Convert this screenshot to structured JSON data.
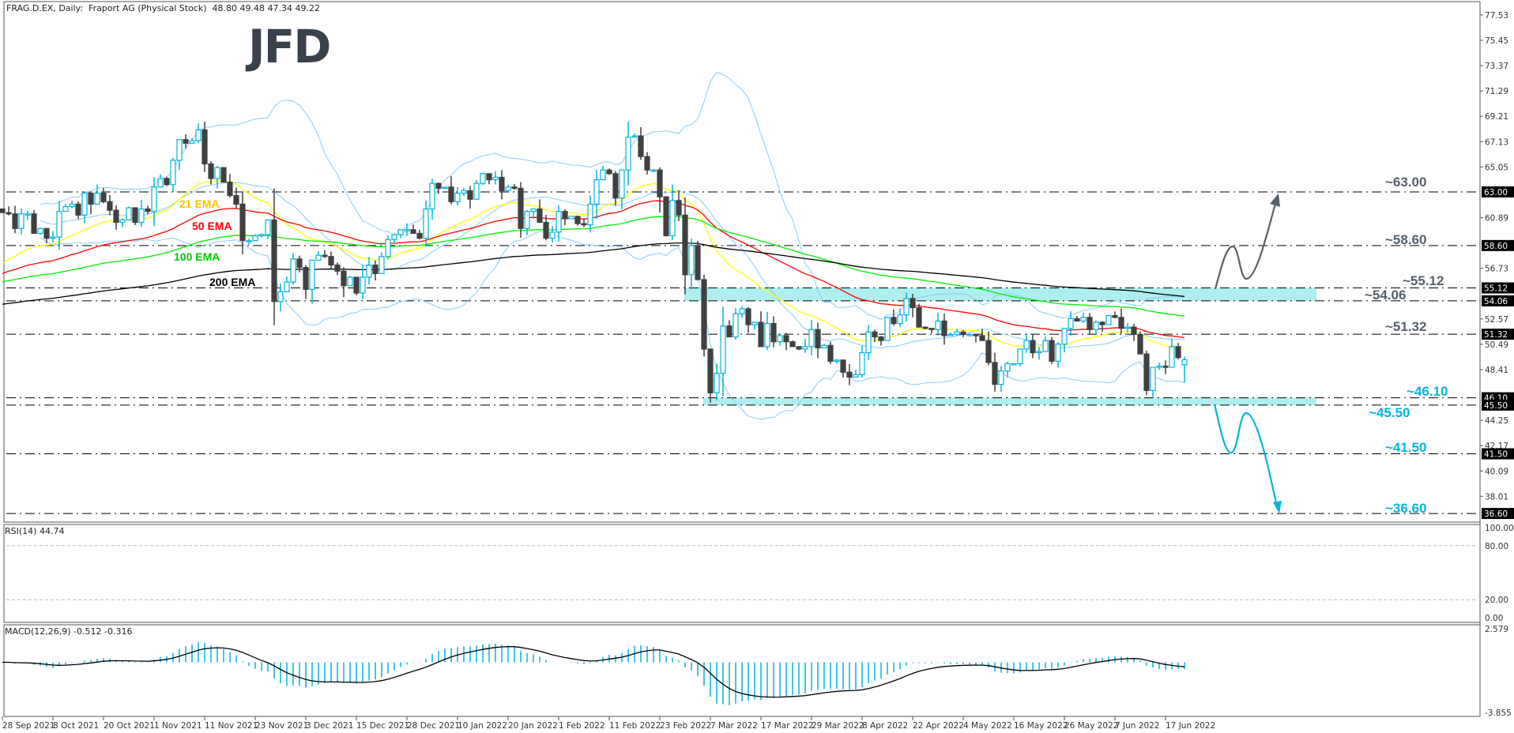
{
  "header": {
    "title": "FRAG.D.EX, Daily:  Fraport AG (Physical Stock)  48.80 49.48 47.34 49.22"
  },
  "logo": "JFD",
  "colors": {
    "bull_candle": "#00b4e0",
    "bear_candle": "#404040",
    "ema21": "#ffff00",
    "ema21_label": "#ffc000",
    "ema50": "#ff0000",
    "ema100": "#00ee00",
    "ema200": "#000000",
    "bollinger": "#87cefa",
    "zone": "#aeeeee",
    "resistance_text": "#56606b",
    "support_text": "#00b4e0",
    "rsi_line": "#00b4e0",
    "macd_hist": "#00b4e0",
    "macd_signal": "#000000"
  },
  "chart_data": [
    {
      "type": "candlestick",
      "symbol": "FRAG.D.EX",
      "timeframe": "Daily",
      "name": "Fraport AG (Physical Stock)",
      "last_ohlc": [
        48.8,
        49.48,
        47.34,
        49.22
      ],
      "x_labels": [
        "28 Sep 2021",
        "8 Oct 2021",
        "20 Oct 2021",
        "1 Nov 2021",
        "11 Nov 2021",
        "23 Nov 2021",
        "3 Dec 2021",
        "15 Dec 2021",
        "28 Dec 2021",
        "10 Jan 2022",
        "20 Jan 2022",
        "1 Feb 2022",
        "11 Feb 2022",
        "23 Feb 2022",
        "7 Mar 2022",
        "17 Mar 2022",
        "29 Mar 2022",
        "8 Apr 2022",
        "22 Apr 2022",
        "4 May 2022",
        "16 May 2022",
        "26 May 2022",
        "7 Jun 2022",
        "17 Jun 2022"
      ],
      "close": [
        61.3,
        61.2,
        60.0,
        61.2,
        61.2,
        59.6,
        60.0,
        59.2,
        59.3,
        61.4,
        61.8,
        62.0,
        61.1,
        62.9,
        62.0,
        62.9,
        62.2,
        61.5,
        60.5,
        60.7,
        61.7,
        60.5,
        61.6,
        61.4,
        63.4,
        64.1,
        63.6,
        65.6,
        67.3,
        67.0,
        67.2,
        68.1,
        65.3,
        64.1,
        65.0,
        63.8,
        62.7,
        62.0,
        59.0,
        59.0,
        59.4,
        59.5,
        60.7,
        54.0,
        54.8,
        55.6,
        57.5,
        56.8,
        55.0,
        57.4,
        57.8,
        57.7,
        57.0,
        56.5,
        55.3,
        56.0,
        54.7,
        56.0,
        57.0,
        56.3,
        57.7,
        59.1,
        59.5,
        59.9,
        59.9,
        59.6,
        59.2,
        61.6,
        63.7,
        63.3,
        63.4,
        62.2,
        62.9,
        63.1,
        62.4,
        63.7,
        64.5,
        64.0,
        64.2,
        63.1,
        63.4,
        63.3,
        60.0,
        61.4,
        61.6,
        60.5,
        59.2,
        59.7,
        61.4,
        60.8,
        61.0,
        60.4,
        60.3,
        62.0,
        64.0,
        64.8,
        64.5,
        62.5,
        64.8,
        67.5,
        67.6,
        65.9,
        64.8,
        64.8,
        62.6,
        59.4,
        62.3,
        61.1,
        56.2,
        58.6,
        55.8,
        50.1,
        46.5,
        48.1,
        52.0,
        51.1,
        53.0,
        53.4,
        52.1,
        52.3,
        50.3,
        52.2,
        50.7,
        51.2,
        50.7,
        50.3,
        50.1,
        50.3,
        51.7,
        50.2,
        50.4,
        49.1,
        49.2,
        48.2,
        47.8,
        48.0,
        49.8,
        51.5,
        51.1,
        50.8,
        52.7,
        52.2,
        52.9,
        54.25,
        53.5,
        51.9,
        51.8,
        51.7,
        52.4,
        51.2,
        51.3,
        51.5,
        51.3,
        51.3,
        51.2,
        50.8,
        49.0,
        47.2,
        48.3,
        48.9,
        48.9,
        50.1,
        50.8,
        49.8,
        49.9,
        50.8,
        49.1,
        50.5,
        51.8,
        52.6,
        52.4,
        52.7,
        51.7,
        52.3,
        52.1,
        52.85,
        52.7,
        51.8,
        51.9,
        51.3,
        49.7,
        46.7,
        48.6,
        48.7,
        48.6,
        50.3,
        49.4,
        49.22
      ],
      "moving_averages": [
        {
          "label": "21 EMA",
          "period": 21,
          "start_value": 56.7
        },
        {
          "label": "50 EMA",
          "period": 50,
          "start_value": 56.1
        },
        {
          "label": "100 EMA",
          "period": 100,
          "start_value": 55.5
        },
        {
          "label": "200 EMA",
          "period": 200,
          "start_value": 53.7
        }
      ],
      "bollinger": {
        "period": 20,
        "deviations": 2
      },
      "y_ticks": [
        77.53,
        75.45,
        73.37,
        71.29,
        69.21,
        67.13,
        65.05,
        60.89,
        56.73,
        52.57,
        50.49,
        48.41,
        44.25,
        42.17,
        40.09,
        38.01
      ],
      "levels": [
        {
          "value": 63.0,
          "axis_label": "63.00",
          "label": "~63.00",
          "kind": "resistance"
        },
        {
          "value": 58.6,
          "axis_label": "58.60",
          "label": "~58.60",
          "kind": "resistance"
        },
        {
          "value": 55.12,
          "axis_label": "55.12",
          "label": "~55.12",
          "kind": "resistance"
        },
        {
          "value": 54.06,
          "axis_label": "54.06",
          "label": "~54.06",
          "kind": "resistance"
        },
        {
          "value": 51.32,
          "axis_label": "51.32",
          "label": "~51.32",
          "kind": "resistance"
        },
        {
          "value": 46.1,
          "axis_label": "46.10",
          "label": "~46.10",
          "kind": "support"
        },
        {
          "value": 45.5,
          "axis_label": "45.50",
          "label": "~45.50",
          "kind": "support"
        },
        {
          "value": 41.5,
          "axis_label": "41.50",
          "label": "~41.50",
          "kind": "support"
        },
        {
          "value": 36.6,
          "axis_label": "36.60",
          "label": "~36.60",
          "kind": "support"
        }
      ],
      "zones": [
        {
          "from": 54.06,
          "to": 55.12
        },
        {
          "from": 45.5,
          "to": 46.1
        }
      ],
      "scenarios": [
        {
          "direction": "up",
          "target": 63.0
        },
        {
          "direction": "down",
          "target": 36.6
        }
      ],
      "ylim": [
        36.0,
        78.5
      ]
    },
    {
      "type": "line",
      "title": "RSI(14) 44.74",
      "period": 14,
      "ylim": [
        0,
        100
      ],
      "y_ticks": [
        "100.00",
        "80.00",
        "20.00",
        "0.00"
      ],
      "guide_levels": [
        80,
        20
      ]
    },
    {
      "type": "bar",
      "title": "MACD(12,26,9) -0.512 -0.316",
      "params": [
        12,
        26,
        9
      ],
      "ylim": [
        -3.855,
        2.579
      ],
      "y_ticks": [
        "2.579",
        "-3.855"
      ]
    }
  ]
}
